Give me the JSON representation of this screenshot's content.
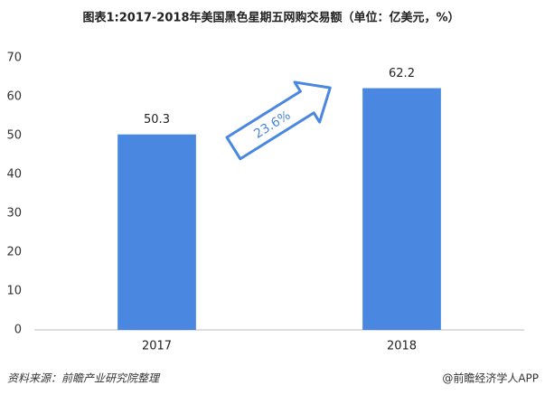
{
  "chart_data": {
    "type": "bar",
    "title": "图表1:2017-2018年美国黑色星期五网购交易额（单位：亿美元，%）",
    "categories": [
      "2017",
      "2018"
    ],
    "values": [
      50.3,
      62.2
    ],
    "color": "#4a87e0",
    "ylim": [
      0,
      70
    ],
    "yticks": [
      0,
      10,
      20,
      30,
      40,
      50,
      60,
      70
    ],
    "grid": false,
    "annotation": "23.6%",
    "source": "资料来源：前瞻产业研究院整理",
    "credit": "@前瞻经济学人APP"
  }
}
